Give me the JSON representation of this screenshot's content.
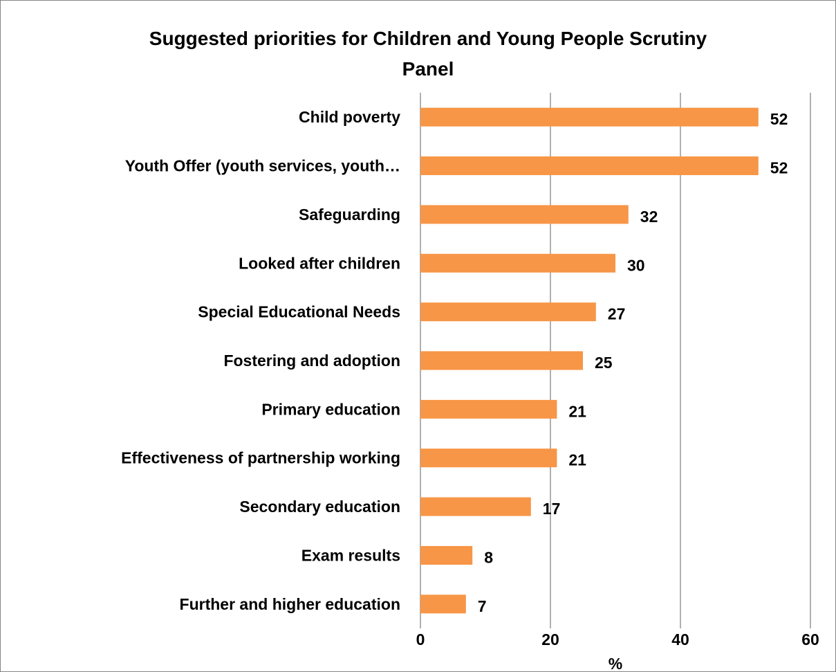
{
  "chart_data": {
    "type": "bar",
    "orientation": "horizontal",
    "title": "Suggested priorities for Children and Young People Scrutiny Panel",
    "title_lines": [
      "Suggested priorities for Children and Young People Scrutiny",
      "Panel"
    ],
    "categories": [
      "Child poverty",
      "Youth Offer (youth services, youth…",
      "Safeguarding",
      "Looked after children",
      "Special Educational Needs",
      "Fostering and adoption",
      "Primary education",
      "Effectiveness of partnership working",
      "Secondary education",
      "Exam results",
      "Further and higher education"
    ],
    "values": [
      52,
      52,
      32,
      30,
      27,
      25,
      21,
      21,
      17,
      8,
      7
    ],
    "xlabel": "%",
    "xlim": [
      0,
      60
    ],
    "xticks": [
      0,
      20,
      40,
      60
    ],
    "grid": true,
    "legend": "none",
    "colors": {
      "bar": "#F79646",
      "grid": "#868686",
      "text": "#000000",
      "frame": "#868686"
    }
  }
}
